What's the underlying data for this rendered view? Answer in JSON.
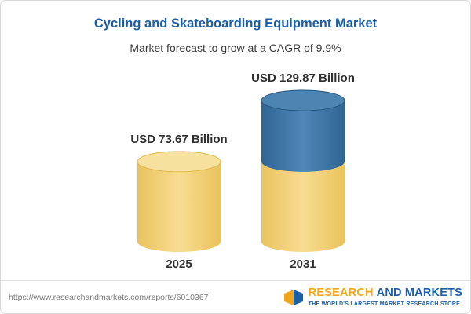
{
  "header": {
    "title": "Cycling and Skateboarding Equipment Market",
    "subtitle": "Market forecast to grow at a CAGR of 9.9%"
  },
  "chart_data": {
    "type": "bar",
    "variant": "3d-cylinder",
    "title": "Cycling and Skateboarding Equipment Market",
    "subtitle": "Market forecast to grow at a CAGR of 9.9%",
    "unit": "USD Billion",
    "cagr_percent": 9.9,
    "categories": [
      "2025",
      "2031"
    ],
    "values": [
      73.67,
      129.87
    ],
    "value_labels": [
      "USD 73.67 Billion",
      "USD 129.87 Billion"
    ],
    "gridlines": false,
    "axes_visible": false,
    "stacking_note": "2031 cylinder: yellow base up to 2025 level, blue growth segment above",
    "colors": {
      "yellow_edge": "#EAC35C",
      "yellow_mid": "#F7DC92",
      "yellow_top": "#F6E19E",
      "yellow_top_stroke": "#E3B94E",
      "blue_edge": "#2E6593",
      "blue_mid": "#4E88B8",
      "blue_top": "#4C84B2",
      "blue_top_stroke": "#27567D"
    }
  },
  "footer": {
    "url": "https://www.researchandmarkets.com/reports/6010367",
    "logo": {
      "word_research": "RESEARCH",
      "word_and_markets": "AND MARKETS",
      "tagline": "THE WORLD'S LARGEST MARKET RESEARCH STORE",
      "brand_orange": "#F2A71B",
      "brand_blue": "#1B5FA8"
    }
  },
  "theme": {
    "title_color": "#1A5FA8",
    "text_color": "#333333",
    "url_color": "#7A7A7A",
    "border_color": "#D8D8D8"
  }
}
